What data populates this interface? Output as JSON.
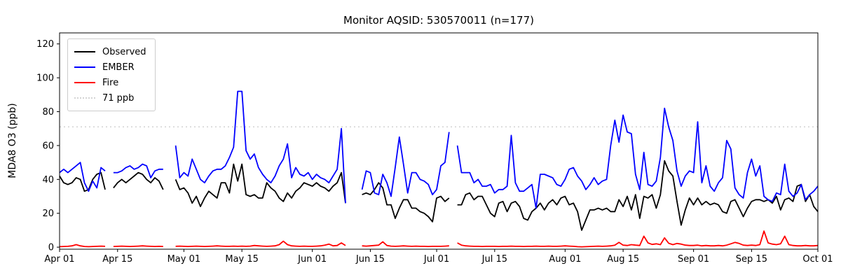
{
  "title": "Monitor AQSID: 530570011 (n=177)",
  "chart_data": {
    "type": "line",
    "title": "Monitor AQSID: 530570011 (n=177)",
    "xlabel": "",
    "ylabel": "MDA8 O3 (ppb)",
    "n_points": 177,
    "grid": false,
    "legend_position": "upper-left",
    "x_range_days": [
      0,
      183
    ],
    "x_tick_days": [
      0,
      14,
      30,
      44,
      61,
      75,
      91,
      105,
      122,
      136,
      153,
      167,
      183
    ],
    "x_tick_labels": [
      "Apr 01",
      "Apr 15",
      "May 01",
      "May 15",
      "Jun 01",
      "Jun 15",
      "Jul 01",
      "Jul 15",
      "Aug 01",
      "Aug 15",
      "Sep 01",
      "Sep 15",
      "Oct 01"
    ],
    "y_ticks": [
      0,
      20,
      40,
      60,
      80,
      100,
      120
    ],
    "ylim": [
      -1.2,
      126.5
    ],
    "threshold": {
      "label": "71 ppb",
      "value": 71,
      "color": "#d3d3d3",
      "style": "dotted"
    },
    "series": [
      {
        "name": "Observed",
        "color": "#000000",
        "values": [
          42,
          38,
          37,
          38,
          41,
          40,
          33,
          34,
          40,
          43,
          44,
          34,
          null,
          35,
          38,
          40,
          38,
          40,
          42,
          44,
          43,
          40,
          38,
          41,
          39,
          34,
          null,
          null,
          40,
          34,
          35,
          32,
          26,
          30,
          24,
          29,
          33,
          31,
          29,
          38,
          38,
          32,
          49,
          39,
          49,
          31,
          30,
          31,
          29,
          29,
          38,
          35,
          33,
          29,
          27,
          32,
          29,
          33,
          35,
          38,
          37,
          36,
          38,
          36,
          35,
          33,
          36,
          38,
          44,
          26,
          null,
          null,
          null,
          31,
          32,
          31,
          34,
          38,
          35,
          25,
          25,
          17,
          23,
          28,
          28,
          23,
          23,
          21,
          20,
          18,
          15,
          29,
          30,
          27,
          29,
          null,
          25,
          25,
          31,
          32,
          28,
          30,
          30,
          25,
          20,
          18,
          26,
          27,
          21,
          26,
          27,
          24,
          17,
          16,
          21,
          23,
          26,
          22,
          26,
          28,
          25,
          29,
          30,
          25,
          26,
          21,
          10,
          16,
          22,
          22,
          23,
          22,
          23,
          21,
          21,
          28,
          24,
          30,
          22,
          31,
          17,
          30,
          29,
          31,
          23,
          31,
          51,
          45,
          42,
          27,
          13,
          22,
          29,
          25,
          29,
          25,
          27,
          25,
          26,
          25,
          21,
          20,
          27,
          28,
          23,
          18,
          23,
          27,
          28,
          28,
          27,
          28,
          26,
          30,
          22,
          28,
          29,
          27,
          36,
          37,
          27,
          31,
          24,
          21
        ]
      },
      {
        "name": "EMBER",
        "color": "#0000ff",
        "values": [
          44,
          46,
          44,
          46,
          48,
          50,
          38,
          33,
          39,
          35,
          47,
          45,
          null,
          44,
          44,
          45,
          47,
          48,
          46,
          47,
          49,
          48,
          41,
          45,
          46,
          46,
          null,
          null,
          60,
          41,
          44,
          42,
          52,
          46,
          40,
          38,
          42,
          45,
          46,
          46,
          48,
          53,
          59,
          92,
          92,
          57,
          52,
          55,
          47,
          43,
          40,
          38,
          42,
          48,
          52,
          61,
          41,
          47,
          43,
          42,
          44,
          40,
          43,
          41,
          40,
          38,
          42,
          46,
          70,
          26,
          null,
          null,
          null,
          34,
          45,
          44,
          32,
          31,
          43,
          38,
          30,
          47,
          65,
          49,
          32,
          44,
          44,
          40,
          39,
          37,
          31,
          34,
          48,
          50,
          68,
          null,
          60,
          44,
          44,
          44,
          38,
          40,
          36,
          36,
          37,
          32,
          34,
          34,
          36,
          66,
          38,
          33,
          33,
          35,
          37,
          23,
          43,
          43,
          42,
          41,
          37,
          36,
          40,
          46,
          47,
          42,
          39,
          34,
          37,
          41,
          37,
          39,
          40,
          60,
          75,
          62,
          78,
          68,
          67,
          43,
          34,
          56,
          37,
          36,
          39,
          53,
          82,
          71,
          63,
          45,
          36,
          42,
          45,
          44,
          74,
          38,
          48,
          36,
          33,
          38,
          41,
          63,
          58,
          35,
          31,
          29,
          44,
          52,
          42,
          48,
          30,
          28,
          27,
          32,
          31,
          49,
          33,
          30,
          32,
          37,
          28,
          31,
          33,
          36
        ]
      },
      {
        "name": "Fire",
        "color": "#ff0000",
        "values": [
          0.3,
          0.4,
          0.5,
          0.8,
          1.5,
          0.8,
          0.4,
          0.3,
          0.4,
          0.5,
          0.6,
          0.5,
          null,
          0.4,
          0.5,
          0.6,
          0.5,
          0.4,
          0.5,
          0.6,
          0.8,
          0.6,
          0.5,
          0.4,
          0.5,
          0.4,
          null,
          null,
          0.5,
          0.6,
          0.5,
          0.4,
          0.5,
          0.6,
          0.5,
          0.4,
          0.5,
          0.6,
          0.8,
          0.6,
          0.5,
          0.5,
          0.6,
          0.5,
          0.6,
          0.5,
          0.6,
          1.0,
          0.8,
          0.6,
          0.5,
          0.6,
          0.8,
          1.5,
          3.5,
          1.5,
          0.8,
          0.6,
          0.5,
          0.6,
          0.5,
          0.5,
          0.6,
          0.8,
          1.2,
          1.8,
          0.8,
          1.0,
          2.5,
          1.0,
          null,
          null,
          null,
          0.8,
          0.6,
          0.8,
          1.0,
          1.2,
          3.2,
          1.0,
          0.6,
          0.5,
          0.6,
          0.8,
          0.6,
          0.5,
          0.6,
          0.5,
          0.5,
          0.4,
          0.5,
          0.5,
          0.5,
          0.6,
          0.8,
          null,
          2.5,
          1.2,
          0.8,
          0.6,
          0.5,
          0.5,
          0.4,
          0.5,
          0.5,
          0.5,
          0.4,
          0.5,
          0.5,
          0.6,
          0.5,
          0.5,
          0.4,
          0.5,
          0.5,
          0.6,
          0.5,
          0.5,
          0.6,
          0.5,
          0.5,
          0.6,
          0.8,
          0.6,
          0.5,
          0.3,
          0.2,
          0.3,
          0.4,
          0.5,
          0.6,
          0.5,
          0.6,
          0.8,
          1.2,
          2.8,
          1.2,
          1.0,
          1.5,
          1.2,
          1.0,
          6.5,
          2.5,
          1.6,
          2.0,
          1.5,
          5.5,
          2.3,
          1.5,
          2.2,
          1.8,
          1.2,
          1.0,
          1.0,
          1.2,
          0.8,
          1.0,
          0.8,
          0.8,
          1.0,
          0.8,
          1.2,
          2.0,
          2.8,
          2.2,
          1.2,
          1.0,
          1.2,
          1.0,
          1.5,
          9.5,
          2.5,
          1.8,
          1.5,
          2.0,
          6.5,
          1.5,
          1.0,
          0.8,
          0.8,
          1.0,
          0.8,
          0.8,
          1.0
        ]
      }
    ]
  }
}
